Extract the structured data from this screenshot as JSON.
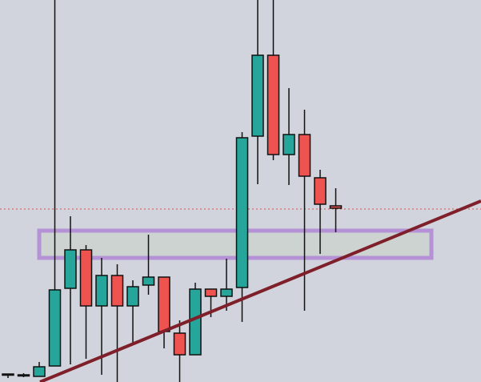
{
  "chart_data": {
    "type": "candlestick",
    "open": [
      10,
      9,
      7,
      20,
      117,
      165,
      95,
      133,
      95,
      121,
      131,
      61,
      34,
      116,
      107,
      118,
      307,
      408,
      284,
      309,
      255,
      220
    ],
    "high": [
      10,
      11,
      25,
      477,
      207,
      171,
      155,
      147,
      127,
      184,
      131,
      77,
      124,
      116,
      154,
      312,
      477,
      477,
      367,
      340,
      265,
      242
    ],
    "low": [
      5,
      6,
      7,
      20,
      22,
      29,
      9,
      0,
      47,
      109,
      42,
      0,
      34,
      81,
      89,
      75,
      247,
      277,
      246,
      89,
      160,
      187
    ],
    "close": [
      10,
      8,
      19,
      115,
      165,
      95,
      133,
      95,
      119,
      131,
      63,
      34,
      116,
      107,
      116,
      305,
      408,
      284,
      309,
      257,
      222,
      217
    ],
    "up_color": "#26a69a",
    "down_color": "#ef5350",
    "ylim": [
      0,
      477
    ],
    "reference_line": 216,
    "reference_color": "#e05050",
    "zone": [
      155,
      189
    ],
    "zone_color": "#b592d6"
  }
}
